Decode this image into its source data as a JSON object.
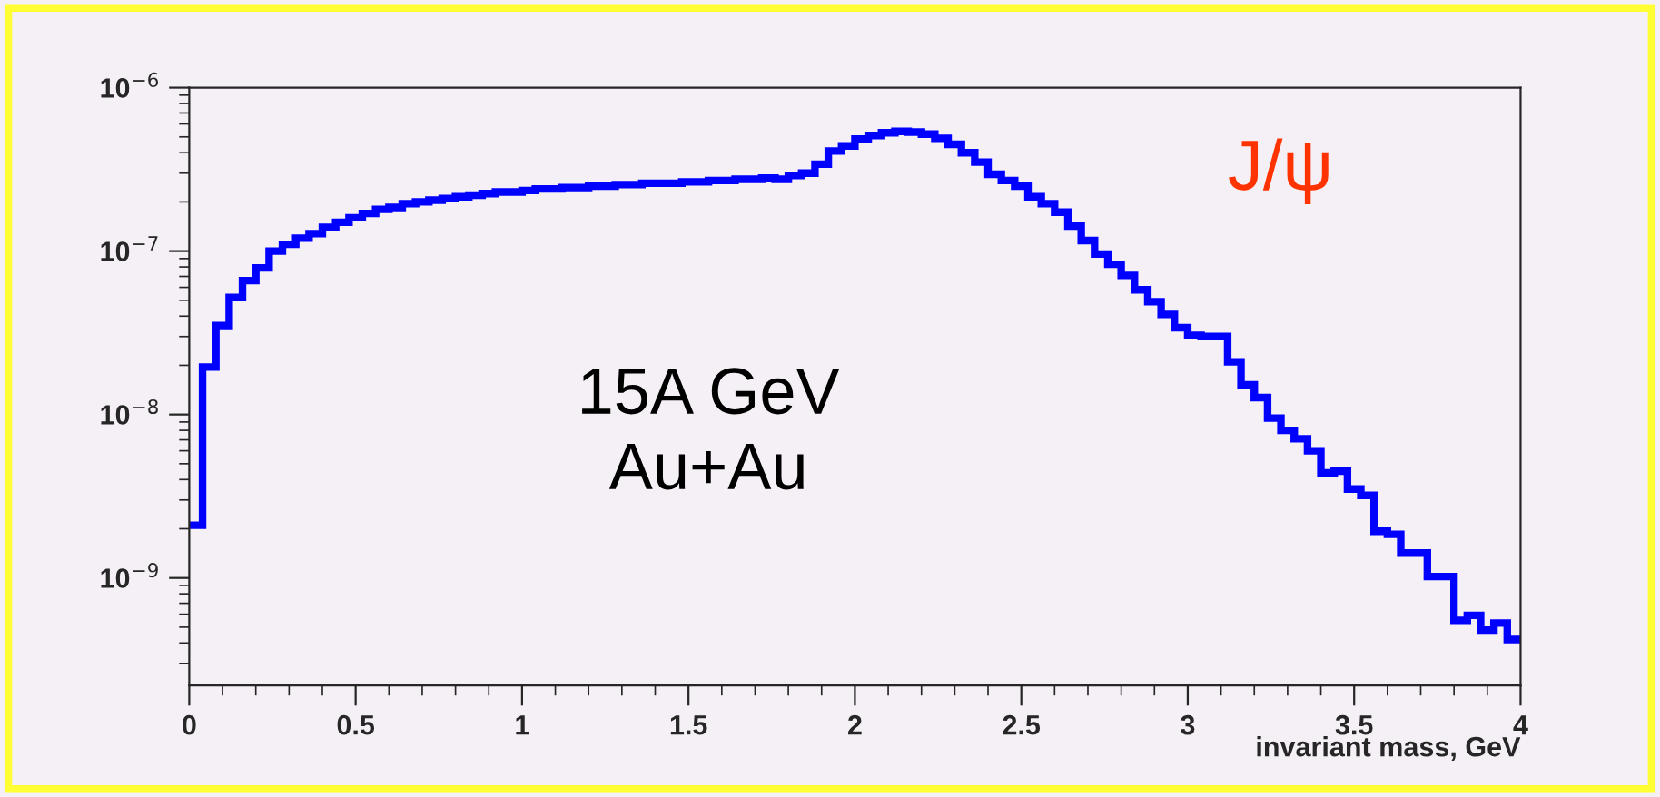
{
  "chart_data": {
    "type": "histogram",
    "xlabel": "invariant mass, GeV",
    "annotations": [
      "15A GeV\nAu+Au",
      "J/ψ"
    ],
    "bins": [
      0,
      0.04,
      0.08,
      0.12,
      0.16,
      0.2,
      0.24,
      0.28,
      0.32,
      0.36,
      0.4,
      0.44,
      0.48,
      0.52,
      0.56,
      0.6,
      0.64,
      0.68,
      0.72,
      0.76,
      0.8,
      0.84,
      0.88,
      0.92,
      0.96,
      1.0,
      1.04,
      1.08,
      1.12,
      1.16,
      1.2,
      1.24,
      1.28,
      1.32,
      1.36,
      1.4,
      1.44,
      1.48,
      1.52,
      1.56,
      1.6,
      1.64,
      1.68,
      1.72,
      1.76,
      1.8,
      1.84,
      1.88,
      1.92,
      1.96,
      2.0,
      2.04,
      2.08,
      2.12,
      2.16,
      2.2,
      2.24,
      2.28,
      2.32,
      2.36,
      2.4,
      2.44,
      2.48,
      2.52,
      2.56,
      2.6,
      2.64,
      2.68,
      2.72,
      2.76,
      2.8,
      2.84,
      2.88,
      2.92,
      2.96,
      3.0,
      3.04,
      3.08,
      3.12,
      3.16,
      3.2,
      3.24,
      3.28,
      3.32,
      3.36,
      3.4,
      3.44,
      3.48,
      3.52,
      3.56,
      3.6,
      3.64,
      3.68,
      3.72,
      3.76,
      3.8,
      3.84,
      3.88,
      3.92,
      3.96,
      4.0
    ],
    "values": [
      2.1e-09,
      1.95e-08,
      3.5e-08,
      5.2e-08,
      6.6e-08,
      7.9e-08,
      1e-07,
      1.1e-07,
      1.2e-07,
      1.28e-07,
      1.4e-07,
      1.5e-07,
      1.6e-07,
      1.7e-07,
      1.8e-07,
      1.85e-07,
      1.95e-07,
      2e-07,
      2.05e-07,
      2.1e-07,
      2.15e-07,
      2.2e-07,
      2.25e-07,
      2.3e-07,
      2.3e-07,
      2.35e-07,
      2.4e-07,
      2.4e-07,
      2.45e-07,
      2.45e-07,
      2.5e-07,
      2.5e-07,
      2.55e-07,
      2.55e-07,
      2.6e-07,
      2.6e-07,
      2.6e-07,
      2.65e-07,
      2.65e-07,
      2.7e-07,
      2.7e-07,
      2.75e-07,
      2.75e-07,
      2.8e-07,
      2.75e-07,
      2.9e-07,
      3e-07,
      3.4e-07,
      4.1e-07,
      4.4e-07,
      4.85e-07,
      5.1e-07,
      5.3e-07,
      5.4e-07,
      5.35e-07,
      5.2e-07,
      4.9e-07,
      4.5e-07,
      4e-07,
      3.5e-07,
      2.95e-07,
      2.7e-07,
      2.5e-07,
      2.15e-07,
      1.95e-07,
      1.73e-07,
      1.42e-07,
      1.16e-07,
      9.6e-08,
      8.3e-08,
      7.1e-08,
      5.8e-08,
      4.9e-08,
      4.1e-08,
      3.4e-08,
      3.05e-08,
      3e-08,
      3e-08,
      2.1e-08,
      1.52e-08,
      1.27e-08,
      9.5e-09,
      8e-09,
      7.1e-09,
      6e-09,
      4.4e-09,
      4.5e-09,
      3.5e-09,
      3.2e-09,
      1.93e-09,
      1.85e-09,
      1.42e-09,
      1.42e-09,
      1.02e-09,
      1.02e-09,
      5.5e-10,
      5.9e-10,
      4.8e-10,
      5.3e-10,
      4.2e-10
    ],
    "color": "#0000ff",
    "log": true,
    "grid": false,
    "legend": false,
    "xlim": [
      0,
      4
    ],
    "xticks": [
      0,
      0.5,
      1,
      1.5,
      2,
      2.5,
      3,
      3.5,
      4
    ],
    "ylim": [
      2.2e-10,
      1e-06
    ],
    "yticks": [
      {
        "value": 1e-09,
        "label": "10$^{−9}$"
      },
      {
        "value": 1e-08,
        "label": "10$^{−8}$"
      },
      {
        "value": 1e-07,
        "label": "10$^{−7}$"
      },
      {
        "value": 1e-06,
        "label": "10$^{−6}$"
      }
    ]
  }
}
